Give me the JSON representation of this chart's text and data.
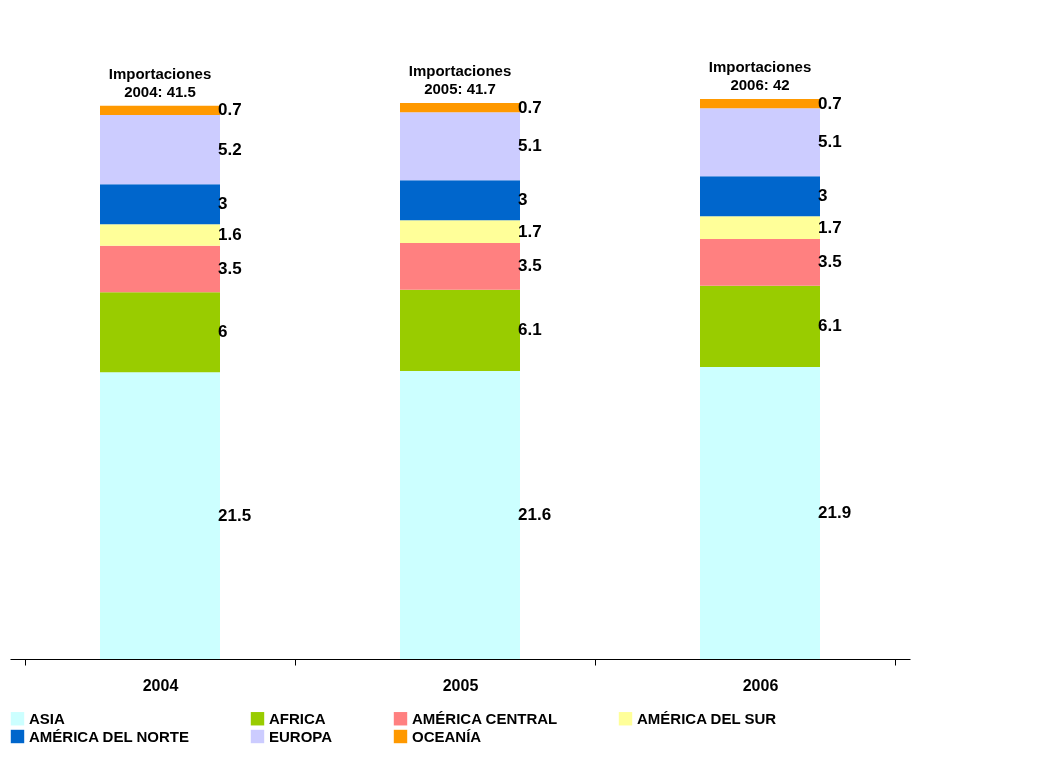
{
  "chart_data": {
    "type": "bar",
    "stacked": true,
    "data_labels": true,
    "legend": "bottom",
    "categories": [
      "2004",
      "2005",
      "2006"
    ],
    "series": [
      {
        "name": "ASIA",
        "color": "#ccffff",
        "values": [
          21.5,
          21.6,
          21.9
        ]
      },
      {
        "name": "AFRICA",
        "color": "#99cc00",
        "values": [
          6,
          6.1,
          6.1
        ]
      },
      {
        "name": "AMÉRICA CENTRAL",
        "color": "#ff8080",
        "values": [
          3.5,
          3.5,
          3.5
        ]
      },
      {
        "name": "AMÉRICA DEL SUR",
        "color": "#ffff99",
        "values": [
          1.6,
          1.7,
          1.7
        ]
      },
      {
        "name": "AMÉRICA DEL NORTE",
        "color": "#0066cc",
        "values": [
          3,
          3,
          3
        ]
      },
      {
        "name": "EUROPA",
        "color": "#ccccff",
        "values": [
          5.2,
          5.1,
          5.1
        ]
      },
      {
        "name": "OCEANÍA",
        "color": "#ff9900",
        "values": [
          0.7,
          0.7,
          0.7
        ]
      }
    ],
    "totals": [
      "Importaciones\n2004: 41.5",
      "Importaciones\n2005: 41.7",
      "Importaciones\n2006: 42"
    ]
  }
}
